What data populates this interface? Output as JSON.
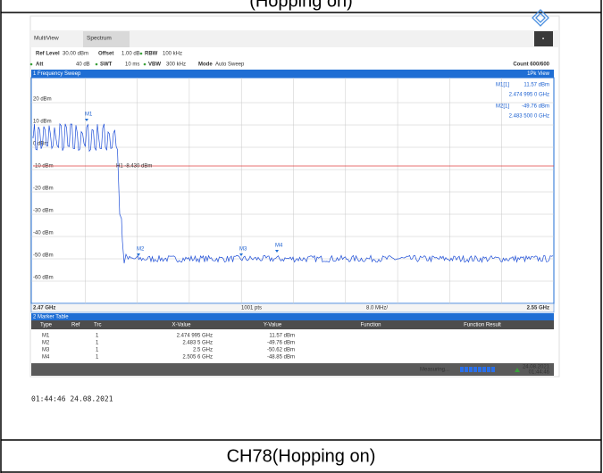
{
  "top_caption": "(Hopping on)",
  "screenshot": {
    "tabs": [
      "MultiView",
      "Spectrum"
    ],
    "settings": {
      "ref_level": "Ref Level",
      "ref_level_value": "30.00 dBm",
      "offset": "Offset",
      "offset_value": "1.00 dB",
      "rbw": "RBW",
      "rbw_value": "100 kHz",
      "att": "Att",
      "att_value": "40 dB",
      "swt": "SWT",
      "swt_value": "10 ms",
      "vbw": "VBW",
      "vbw_value": "300 kHz",
      "mode": "Mode",
      "mode_value": "Auto Sweep",
      "count": "Count 600/600"
    },
    "window_title": "1 Frequency Sweep",
    "view": "1Pk View",
    "y_labels": [
      "20 dBm",
      "10 dBm",
      "0 dBm",
      "-10 dBm",
      "-20 dBm",
      "-30 dBm",
      "-40 dBm",
      "-50 dBm",
      "-60 dBm"
    ],
    "marker_readouts": [
      {
        "name": "M1[1]",
        "level": "11.57 dBm",
        "freq": "2.474 995 0 GHz"
      },
      {
        "name": "M2[1]",
        "level": "-49.76 dBm",
        "freq": "2.483 500 0 GHz"
      }
    ],
    "line_label": "H1 -8.430 dBm",
    "plot_markers": [
      "M1",
      "M2",
      "M3",
      "M4"
    ],
    "footer": [
      "2.47 GHz",
      "1001 pts",
      "8.0 MHz/",
      "2.55 GHz"
    ],
    "marker_table": {
      "title": "2 Marker Table",
      "headers": [
        "Type",
        "Ref",
        "Trc",
        "X-Value",
        "Y-Value",
        "Function",
        "Function Result"
      ],
      "rows": [
        [
          "M1",
          "1",
          "2.474 995 GHz",
          "11.57 dBm"
        ],
        [
          "M2",
          "1",
          "2.483 5 GHz",
          "-49.76 dBm"
        ],
        [
          "M3",
          "1",
          "2.5 GHz",
          "-50.62 dBm"
        ],
        [
          "M4",
          "1",
          "2.505 6 GHz",
          "-48.85 dBm"
        ]
      ]
    },
    "status": {
      "measuring": "Measuring...",
      "date": "24.08.2021",
      "time": "01:44:46"
    }
  },
  "timestamp": "01:44:46  24.08.2021",
  "caption": "CH78(Hopping on)"
}
